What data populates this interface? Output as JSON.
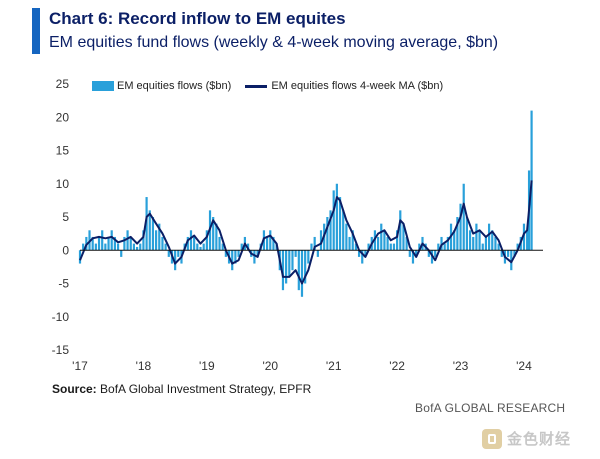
{
  "header": {
    "title": "Chart 6: Record inflow to EM equites",
    "subtitle": "EM equities fund flows (weekly & 4-week moving average, $bn)"
  },
  "colors": {
    "accent": "#1565c0",
    "bar": "#29a0da",
    "line": "#0b1f66"
  },
  "legend": {
    "bar_label": "EM equities flows ($bn)",
    "line_label": "EM equities flows 4-week MA ($bn)"
  },
  "footer": {
    "source_label": "Source:",
    "source_text": "BofA Global Investment Strategy, EPFR",
    "credit": "BofA GLOBAL RESEARCH",
    "watermark_text": "金色财经"
  },
  "chart_data": {
    "type": "bar",
    "xlabel": "",
    "ylabel": "",
    "ylim": [
      -15,
      25
    ],
    "yticks": [
      -15,
      -10,
      -5,
      0,
      5,
      10,
      15,
      20,
      25
    ],
    "xticks": [
      "'17",
      "'18",
      "'19",
      "'20",
      "'21",
      "'22",
      "'23",
      "'24"
    ],
    "xlim": [
      2017,
      2024.3
    ],
    "grid": false,
    "legend_position": "top-left",
    "series": [
      {
        "name": "EM equities flows ($bn)",
        "type": "bar",
        "points": [
          [
            2017.0,
            -2
          ],
          [
            2017.05,
            1
          ],
          [
            2017.1,
            2
          ],
          [
            2017.15,
            3
          ],
          [
            2017.2,
            2
          ],
          [
            2017.25,
            1
          ],
          [
            2017.3,
            2
          ],
          [
            2017.35,
            3
          ],
          [
            2017.4,
            1
          ],
          [
            2017.45,
            2
          ],
          [
            2017.5,
            3
          ],
          [
            2017.55,
            2
          ],
          [
            2017.6,
            1
          ],
          [
            2017.65,
            -1
          ],
          [
            2017.7,
            2
          ],
          [
            2017.75,
            3
          ],
          [
            2017.8,
            2
          ],
          [
            2017.85,
            1
          ],
          [
            2017.9,
            0.5
          ],
          [
            2017.95,
            1
          ],
          [
            2018.0,
            3
          ],
          [
            2018.05,
            8
          ],
          [
            2018.1,
            6
          ],
          [
            2018.15,
            5
          ],
          [
            2018.2,
            3
          ],
          [
            2018.25,
            4
          ],
          [
            2018.3,
            2
          ],
          [
            2018.35,
            1
          ],
          [
            2018.4,
            -1
          ],
          [
            2018.45,
            -2
          ],
          [
            2018.5,
            -3
          ],
          [
            2018.55,
            -1
          ],
          [
            2018.6,
            -2
          ],
          [
            2018.65,
            1
          ],
          [
            2018.7,
            2
          ],
          [
            2018.75,
            3
          ],
          [
            2018.8,
            2
          ],
          [
            2018.85,
            1
          ],
          [
            2018.9,
            0.5
          ],
          [
            2018.95,
            1
          ],
          [
            2019.0,
            3
          ],
          [
            2019.05,
            6
          ],
          [
            2019.1,
            5
          ],
          [
            2019.15,
            4
          ],
          [
            2019.2,
            2
          ],
          [
            2019.25,
            1
          ],
          [
            2019.3,
            -1
          ],
          [
            2019.35,
            -2
          ],
          [
            2019.4,
            -3
          ],
          [
            2019.45,
            -2
          ],
          [
            2019.5,
            -1
          ],
          [
            2019.55,
            1
          ],
          [
            2019.6,
            2
          ],
          [
            2019.65,
            1
          ],
          [
            2019.7,
            -1
          ],
          [
            2019.75,
            -2
          ],
          [
            2019.8,
            -1
          ],
          [
            2019.85,
            1
          ],
          [
            2019.9,
            3
          ],
          [
            2019.95,
            2
          ],
          [
            2020.0,
            3
          ],
          [
            2020.05,
            2
          ],
          [
            2020.1,
            1
          ],
          [
            2020.15,
            -3
          ],
          [
            2020.2,
            -6
          ],
          [
            2020.25,
            -5
          ],
          [
            2020.3,
            -4
          ],
          [
            2020.35,
            -3
          ],
          [
            2020.4,
            -1
          ],
          [
            2020.45,
            -6
          ],
          [
            2020.5,
            -7
          ],
          [
            2020.55,
            -5
          ],
          [
            2020.6,
            -2
          ],
          [
            2020.65,
            1
          ],
          [
            2020.7,
            2
          ],
          [
            2020.75,
            -1
          ],
          [
            2020.8,
            3
          ],
          [
            2020.85,
            4
          ],
          [
            2020.9,
            5
          ],
          [
            2020.95,
            6
          ],
          [
            2021.0,
            9
          ],
          [
            2021.05,
            10
          ],
          [
            2021.1,
            8
          ],
          [
            2021.15,
            6
          ],
          [
            2021.2,
            4
          ],
          [
            2021.25,
            2
          ],
          [
            2021.3,
            3
          ],
          [
            2021.35,
            1
          ],
          [
            2021.4,
            -1
          ],
          [
            2021.45,
            -2
          ],
          [
            2021.5,
            -1
          ],
          [
            2021.55,
            1
          ],
          [
            2021.6,
            2
          ],
          [
            2021.65,
            3
          ],
          [
            2021.7,
            2
          ],
          [
            2021.75,
            4
          ],
          [
            2021.8,
            3
          ],
          [
            2021.85,
            2
          ],
          [
            2021.9,
            1
          ],
          [
            2021.95,
            1
          ],
          [
            2022.0,
            3
          ],
          [
            2022.05,
            6
          ],
          [
            2022.1,
            4
          ],
          [
            2022.15,
            2
          ],
          [
            2022.2,
            -1
          ],
          [
            2022.25,
            -2
          ],
          [
            2022.3,
            -1
          ],
          [
            2022.35,
            1
          ],
          [
            2022.4,
            2
          ],
          [
            2022.45,
            1
          ],
          [
            2022.5,
            -1
          ],
          [
            2022.55,
            -2
          ],
          [
            2022.6,
            -1
          ],
          [
            2022.65,
            1
          ],
          [
            2022.7,
            2
          ],
          [
            2022.75,
            1
          ],
          [
            2022.8,
            2
          ],
          [
            2022.85,
            4
          ],
          [
            2022.9,
            3
          ],
          [
            2022.95,
            5
          ],
          [
            2023.0,
            7
          ],
          [
            2023.05,
            10
          ],
          [
            2023.1,
            5
          ],
          [
            2023.15,
            3
          ],
          [
            2023.2,
            2
          ],
          [
            2023.25,
            4
          ],
          [
            2023.3,
            3
          ],
          [
            2023.35,
            1
          ],
          [
            2023.4,
            2
          ],
          [
            2023.45,
            4
          ],
          [
            2023.5,
            3
          ],
          [
            2023.55,
            2
          ],
          [
            2023.6,
            1
          ],
          [
            2023.65,
            -1
          ],
          [
            2023.7,
            -2
          ],
          [
            2023.75,
            -1
          ],
          [
            2023.8,
            -3
          ],
          [
            2023.85,
            -1
          ],
          [
            2023.9,
            1
          ],
          [
            2023.95,
            2
          ],
          [
            2024.0,
            4
          ],
          [
            2024.05,
            3
          ],
          [
            2024.08,
            12
          ],
          [
            2024.12,
            21
          ]
        ]
      },
      {
        "name": "EM equities flows 4-week MA ($bn)",
        "type": "line",
        "points": [
          [
            2017.0,
            -1.5
          ],
          [
            2017.1,
            0.8
          ],
          [
            2017.2,
            1.8
          ],
          [
            2017.3,
            2
          ],
          [
            2017.4,
            1.8
          ],
          [
            2017.5,
            2
          ],
          [
            2017.6,
            1.2
          ],
          [
            2017.7,
            1.5
          ],
          [
            2017.8,
            2
          ],
          [
            2017.9,
            1
          ],
          [
            2018.0,
            2
          ],
          [
            2018.05,
            5
          ],
          [
            2018.1,
            5.5
          ],
          [
            2018.2,
            4
          ],
          [
            2018.3,
            2.5
          ],
          [
            2018.4,
            0.5
          ],
          [
            2018.5,
            -2
          ],
          [
            2018.6,
            -1
          ],
          [
            2018.7,
            1.5
          ],
          [
            2018.8,
            2.2
          ],
          [
            2018.9,
            1
          ],
          [
            2019.0,
            2
          ],
          [
            2019.1,
            4.5
          ],
          [
            2019.2,
            3
          ],
          [
            2019.3,
            0
          ],
          [
            2019.4,
            -2
          ],
          [
            2019.5,
            -1.5
          ],
          [
            2019.6,
            1
          ],
          [
            2019.7,
            -0.5
          ],
          [
            2019.8,
            -1
          ],
          [
            2019.9,
            1.8
          ],
          [
            2020.0,
            2.2
          ],
          [
            2020.1,
            1
          ],
          [
            2020.2,
            -4
          ],
          [
            2020.3,
            -4
          ],
          [
            2020.4,
            -3
          ],
          [
            2020.5,
            -5
          ],
          [
            2020.6,
            -3
          ],
          [
            2020.7,
            0.5
          ],
          [
            2020.8,
            1
          ],
          [
            2020.9,
            3.5
          ],
          [
            2021.0,
            6
          ],
          [
            2021.05,
            8
          ],
          [
            2021.1,
            7.5
          ],
          [
            2021.2,
            4.5
          ],
          [
            2021.3,
            2.5
          ],
          [
            2021.4,
            0
          ],
          [
            2021.5,
            -1
          ],
          [
            2021.6,
            1
          ],
          [
            2021.7,
            2.5
          ],
          [
            2021.8,
            3
          ],
          [
            2021.9,
            1.5
          ],
          [
            2022.0,
            2
          ],
          [
            2022.05,
            4.5
          ],
          [
            2022.1,
            4
          ],
          [
            2022.2,
            0.5
          ],
          [
            2022.3,
            -1
          ],
          [
            2022.4,
            1
          ],
          [
            2022.5,
            0
          ],
          [
            2022.6,
            -1.5
          ],
          [
            2022.7,
            0.8
          ],
          [
            2022.8,
            1.5
          ],
          [
            2022.9,
            2.8
          ],
          [
            2023.0,
            5
          ],
          [
            2023.05,
            7
          ],
          [
            2023.1,
            5
          ],
          [
            2023.2,
            2.5
          ],
          [
            2023.3,
            3
          ],
          [
            2023.4,
            2
          ],
          [
            2023.5,
            2.8
          ],
          [
            2023.6,
            1.5
          ],
          [
            2023.7,
            -1
          ],
          [
            2023.8,
            -1.8
          ],
          [
            2023.9,
            0
          ],
          [
            2024.0,
            2.5
          ],
          [
            2024.05,
            3
          ],
          [
            2024.08,
            6
          ],
          [
            2024.12,
            10.5
          ]
        ]
      }
    ]
  }
}
